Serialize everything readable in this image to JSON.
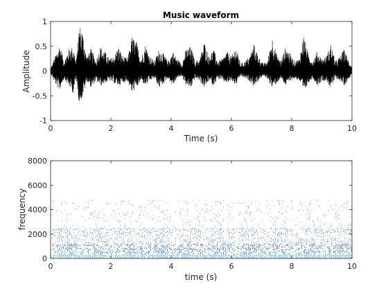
{
  "window": {
    "background": "#ffffff"
  },
  "chart_data": [
    {
      "type": "line",
      "title": "Music waveform",
      "xlabel": "Time (s)",
      "ylabel": "Amplitude",
      "xlim": [
        0,
        10
      ],
      "ylim": [
        -1,
        1
      ],
      "xticks": [
        0,
        2,
        4,
        6,
        8,
        10
      ],
      "yticks": [
        -1,
        -0.5,
        0,
        0.5,
        1
      ],
      "xtick_labels": [
        "0",
        "2",
        "4",
        "6",
        "8",
        "10"
      ],
      "ytick_labels": [
        "-1",
        "-0.5",
        "0",
        "0.5",
        "1"
      ],
      "grid": false,
      "line_color": "#000000",
      "envelope": {
        "t": [
          0,
          0.15,
          0.3,
          0.45,
          0.6,
          0.75,
          0.85,
          0.95,
          1.05,
          1.2,
          1.35,
          1.5,
          1.65,
          1.8,
          1.95,
          2.1,
          2.25,
          2.4,
          2.55,
          2.7,
          2.85,
          3.0,
          3.15,
          3.3,
          3.45,
          3.6,
          3.75,
          3.9,
          4.05,
          4.2,
          4.35,
          4.5,
          4.65,
          4.8,
          4.95,
          5.1,
          5.25,
          5.4,
          5.55,
          5.7,
          5.85,
          6.0,
          6.15,
          6.3,
          6.45,
          6.6,
          6.75,
          6.9,
          7.05,
          7.2,
          7.35,
          7.5,
          7.65,
          7.8,
          7.95,
          8.1,
          8.25,
          8.4,
          8.55,
          8.7,
          8.85,
          9.0,
          9.15,
          9.3,
          9.45,
          9.6,
          9.75,
          9.9,
          10.0
        ],
        "upper": [
          0.05,
          0.3,
          0.55,
          0.2,
          0.45,
          0.5,
          0.2,
          0.95,
          0.85,
          0.3,
          0.45,
          0.2,
          0.5,
          0.4,
          0.25,
          0.3,
          0.5,
          0.3,
          0.25,
          0.7,
          0.6,
          0.25,
          0.55,
          0.3,
          0.2,
          0.45,
          0.35,
          0.2,
          0.4,
          0.25,
          0.15,
          0.45,
          0.5,
          0.2,
          0.25,
          0.6,
          0.3,
          0.45,
          0.2,
          0.25,
          0.4,
          0.3,
          0.5,
          0.15,
          0.2,
          0.3,
          0.55,
          0.3,
          0.15,
          0.2,
          0.7,
          0.35,
          0.2,
          0.5,
          0.35,
          0.2,
          0.25,
          0.75,
          0.35,
          0.2,
          0.4,
          0.25,
          0.3,
          0.55,
          0.2,
          0.3,
          0.45,
          0.2,
          0.1
        ],
        "lower": [
          -0.05,
          -0.25,
          -0.4,
          -0.15,
          -0.3,
          -0.45,
          -0.15,
          -0.65,
          -0.55,
          -0.2,
          -0.35,
          -0.2,
          -0.3,
          -0.25,
          -0.2,
          -0.25,
          -0.3,
          -0.25,
          -0.2,
          -0.45,
          -0.35,
          -0.2,
          -0.3,
          -0.2,
          -0.15,
          -0.35,
          -0.25,
          -0.15,
          -0.3,
          -0.15,
          -0.1,
          -0.3,
          -0.35,
          -0.15,
          -0.2,
          -0.35,
          -0.2,
          -0.3,
          -0.15,
          -0.2,
          -0.25,
          -0.2,
          -0.3,
          -0.1,
          -0.15,
          -0.2,
          -0.3,
          -0.2,
          -0.1,
          -0.15,
          -0.35,
          -0.25,
          -0.15,
          -0.3,
          -0.2,
          -0.15,
          -0.2,
          -0.45,
          -0.25,
          -0.15,
          -0.3,
          -0.2,
          -0.2,
          -0.35,
          -0.15,
          -0.2,
          -0.3,
          -0.15,
          -0.05
        ]
      }
    },
    {
      "type": "heatmap",
      "title": "",
      "xlabel": "time (s)",
      "ylabel": "frequency",
      "xlim": [
        0,
        10
      ],
      "ylim": [
        0,
        8000
      ],
      "xticks": [
        0,
        2,
        4,
        6,
        8,
        10
      ],
      "yticks": [
        0,
        2000,
        4000,
        6000,
        8000
      ],
      "xtick_labels": [
        "0",
        "2",
        "4",
        "6",
        "8",
        "10"
      ],
      "ytick_labels": [
        "0",
        "2000",
        "4000",
        "6000",
        "8000"
      ],
      "grid": false,
      "colors": {
        "low": "#46b7cf",
        "mid": "#2c64d6",
        "high": "#8fb3ef"
      },
      "frequency_bands": [
        {
          "range": [
            0,
            300
          ],
          "color": "#46b7cf",
          "density": 0.9
        },
        {
          "range": [
            300,
            1200
          ],
          "color": "#2c64d6",
          "density": 0.45
        },
        {
          "range": [
            1200,
            2500
          ],
          "color": "#6f97e8",
          "density": 0.3
        },
        {
          "range": [
            2500,
            4800
          ],
          "color": "#8fb3ef",
          "density": 0.14
        }
      ],
      "max_frequency_observed": 4800
    }
  ]
}
